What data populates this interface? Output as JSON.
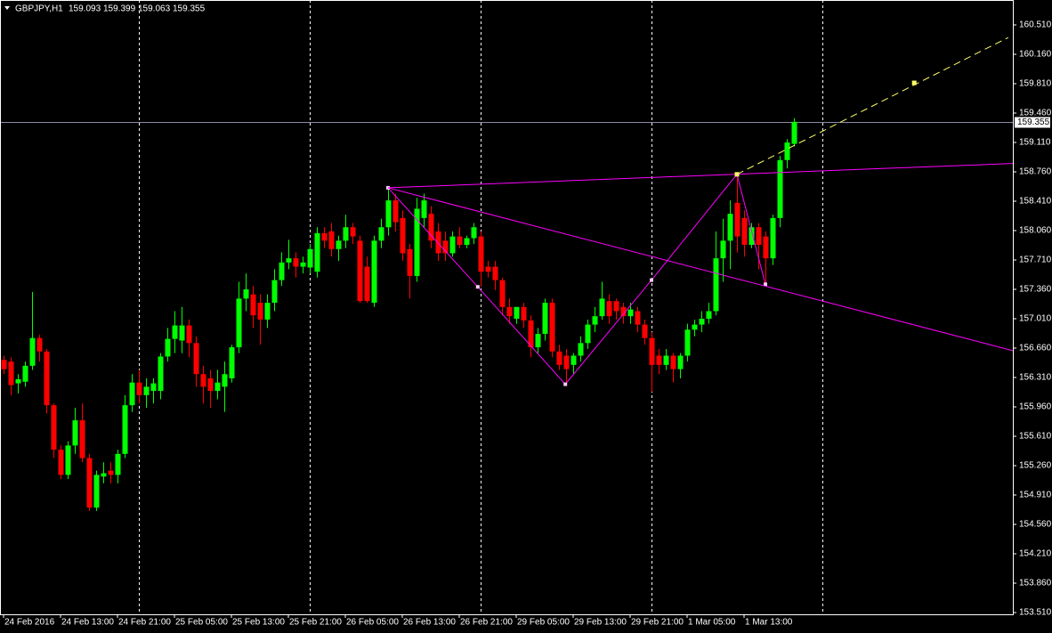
{
  "chart_data": {
    "type": "candlestick",
    "symbol": "GBPJPY,H1",
    "up_color": "#00ff00",
    "down_color": "#ff0000",
    "xlim": [
      -0.5,
      141.75
    ],
    "ylim": [
      153.489,
      160.807
    ],
    "xticks": [
      {
        "value": 0,
        "label": "24 Feb 2016"
      },
      {
        "value": 8,
        "label": "24 Feb 13:00"
      },
      {
        "value": 16,
        "label": "24 Feb 21:00"
      },
      {
        "value": 24,
        "label": "25 Feb 05:00"
      },
      {
        "value": 32,
        "label": "25 Feb 13:00"
      },
      {
        "value": 40,
        "label": "25 Feb 21:00"
      },
      {
        "value": 48,
        "label": "26 Feb 05:00"
      },
      {
        "value": 56,
        "label": "26 Feb 13:00"
      },
      {
        "value": 64,
        "label": "26 Feb 21:00"
      },
      {
        "value": 72,
        "label": "29 Feb 05:00"
      },
      {
        "value": 80,
        "label": "29 Feb 13:00"
      },
      {
        "value": 88,
        "label": "29 Feb 21:00"
      },
      {
        "value": 96,
        "label": "1 Mar 05:00"
      },
      {
        "value": 104,
        "label": "1 Mar 13:00"
      }
    ],
    "yticks": [
      {
        "value": 160.51,
        "label": "160.510"
      },
      {
        "value": 160.16,
        "label": "160.160"
      },
      {
        "value": 159.81,
        "label": "159.810"
      },
      {
        "value": 159.46,
        "label": "159.460"
      },
      {
        "value": 159.11,
        "label": "159.110"
      },
      {
        "value": 158.76,
        "label": "158.760"
      },
      {
        "value": 158.41,
        "label": "158.410"
      },
      {
        "value": 158.06,
        "label": "158.060"
      },
      {
        "value": 157.71,
        "label": "157.710"
      },
      {
        "value": 157.36,
        "label": "157.360"
      },
      {
        "value": 157.01,
        "label": "157.010"
      },
      {
        "value": 156.66,
        "label": "156.660"
      },
      {
        "value": 156.31,
        "label": "156.310"
      },
      {
        "value": 155.96,
        "label": "155.960"
      },
      {
        "value": 155.61,
        "label": "155.610"
      },
      {
        "value": 155.26,
        "label": "155.260"
      },
      {
        "value": 154.91,
        "label": "154.910"
      },
      {
        "value": 154.56,
        "label": "154.560"
      },
      {
        "value": 154.21,
        "label": "154.210"
      },
      {
        "value": 153.86,
        "label": "153.860"
      },
      {
        "value": 153.51,
        "label": "153.510"
      }
    ],
    "xgrid": [
      19,
      43,
      67,
      91,
      115
    ],
    "open": [
      156.52,
      156.5,
      156.24,
      156.26,
      156.45,
      156.78,
      156.62,
      155.98,
      155.45,
      155.15,
      155.5,
      155.8,
      155.35,
      154.76,
      155.13,
      155.2,
      155.15,
      155.4,
      155.98,
      156.25,
      156.1,
      156.15,
      156.15,
      156.56,
      156.77,
      156.75,
      156.93,
      156.72,
      156.35,
      156.3,
      156.15,
      156.2,
      156.3,
      156.67,
      157.25,
      157.3,
      157.2,
      157,
      157.2,
      157.47,
      157.68,
      157.73,
      157.63,
      157.62,
      157.57,
      158.03,
      158.05,
      157.84,
      157.94,
      158.1,
      157.94,
      157.63,
      157.2,
      157.94,
      158.1,
      158.42,
      158.21,
      157.84,
      157.52,
      158.21,
      158.26,
      158.05,
      157.94,
      157.79,
      157.99,
      157.89,
      157.97,
      157.99,
      157.63,
      157.63,
      157.47,
      157.15,
      157.01,
      157.15,
      156.99,
      156.67,
      156.83,
      157.2,
      156.62,
      156.57,
      156.46,
      156.57,
      156.72,
      156.94,
      157.04,
      157.22,
      157.22,
      157.15,
      157.04,
      157.1,
      156.94,
      156.78,
      156.57,
      156.46,
      156.57,
      156.41,
      156.57,
      156.88,
      156.94,
      157.01,
      157.1,
      157.73,
      157.94,
      158.39,
      158.21,
      157.89,
      158.1,
      157.99,
      157.73,
      158.21,
      158.9,
      159.093
    ],
    "high": [
      156.57,
      156.55,
      156.35,
      156.5,
      157.33,
      156.82,
      156.65,
      156,
      155.5,
      155.55,
      155.95,
      156,
      155.4,
      155.2,
      155.3,
      155.3,
      155.45,
      156.1,
      156.35,
      156.4,
      156.3,
      156.3,
      156.6,
      156.9,
      157.1,
      157.15,
      157,
      156.8,
      156.45,
      156.4,
      156.4,
      156.5,
      156.7,
      157.45,
      157.55,
      157.4,
      157.3,
      157.3,
      157.6,
      157.8,
      157.95,
      157.8,
      157.75,
      157.9,
      158.1,
      158.1,
      158.15,
      158,
      158.25,
      158.15,
      158,
      157.75,
      158,
      158.2,
      158.57,
      158.5,
      158.3,
      157.9,
      158.45,
      158.5,
      158.35,
      158.15,
      158.05,
      158.05,
      158.1,
      158,
      158.15,
      158.05,
      157.7,
      157.7,
      157.5,
      157.25,
      157.15,
      157.2,
      157.05,
      156.9,
      157.25,
      157.25,
      156.7,
      156.65,
      156.6,
      156.8,
      157,
      157.15,
      157.45,
      157.3,
      157.25,
      157.2,
      157.2,
      157.15,
      157,
      156.85,
      156.65,
      156.65,
      156.6,
      156.6,
      156.95,
      157,
      157.1,
      157.2,
      158.05,
      158.2,
      158.42,
      158.73,
      158.3,
      158.15,
      158.15,
      158.05,
      158.25,
      158.95,
      159.15,
      159.399
    ],
    "low": [
      156.35,
      156.1,
      156.12,
      156.2,
      156.4,
      156.5,
      155.88,
      155.35,
      155.1,
      155.1,
      155.4,
      155.3,
      154.72,
      154.72,
      155.05,
      155.05,
      155.05,
      155.35,
      155.9,
      156,
      155.95,
      156,
      156.05,
      156.5,
      156.6,
      156.6,
      156.55,
      156.2,
      156,
      155.95,
      156.05,
      155.9,
      156.25,
      156.6,
      157.1,
      156.9,
      156.7,
      156.9,
      157.1,
      157.4,
      157.6,
      157.5,
      157.55,
      157.55,
      157.5,
      157.85,
      157.75,
      157.7,
      157.85,
      157.9,
      157.2,
      157.2,
      157.15,
      157.85,
      158,
      158.05,
      157.7,
      157.25,
      157.45,
      158.1,
      157.85,
      157.7,
      157.7,
      157.75,
      157.85,
      157.85,
      157.9,
      157.39,
      157.5,
      157.35,
      157.05,
      156.95,
      156.95,
      156.9,
      156.55,
      156.6,
      156.75,
      156.55,
      156.4,
      156.23,
      156.35,
      156.5,
      156.65,
      156.85,
      157,
      156.95,
      157,
      156.95,
      156.95,
      156.85,
      156.7,
      156.14,
      156.35,
      156.4,
      156.25,
      156.3,
      156.5,
      156.8,
      156.85,
      156.95,
      157.05,
      157.45,
      157.6,
      157.8,
      157.75,
      157.85,
      157.6,
      157.42,
      157.65,
      158.1,
      158.8,
      159.063
    ],
    "close": [
      156.41,
      156.22,
      156.29,
      156.45,
      156.78,
      156.62,
      155.98,
      155.45,
      155.15,
      155.5,
      155.8,
      155.35,
      154.76,
      155.15,
      155.17,
      155.15,
      155.4,
      155.98,
      156.25,
      156.1,
      156.2,
      156.24,
      156.56,
      156.77,
      156.93,
      156.93,
      156.72,
      156.35,
      156.2,
      156.15,
      156.25,
      156.35,
      156.67,
      157.25,
      157.36,
      157.05,
      157,
      157.2,
      157.47,
      157.68,
      157.73,
      157.63,
      157.68,
      157.84,
      158.03,
      157.94,
      157.84,
      157.94,
      158.1,
      157.99,
      157.22,
      157.22,
      157.94,
      158.1,
      158.42,
      158.16,
      157.79,
      157.52,
      158.32,
      158.42,
      157.94,
      157.79,
      157.79,
      157.99,
      157.89,
      157.97,
      158.1,
      157.57,
      157.57,
      157.47,
      157.15,
      157.04,
      157.15,
      156.99,
      156.67,
      156.83,
      157.2,
      156.62,
      156.46,
      156.41,
      156.57,
      156.72,
      156.94,
      157.04,
      157.25,
      157.04,
      157.1,
      157.04,
      157.12,
      156.94,
      156.78,
      156.46,
      156.46,
      156.57,
      156.41,
      156.57,
      156.88,
      156.94,
      157.01,
      157.1,
      157.73,
      157.94,
      158.26,
      157.99,
      157.89,
      158.1,
      157.89,
      157.73,
      158.21,
      158.9,
      159.11,
      159.355
    ],
    "price_line_color": "#8c8ca8",
    "zigzag": {
      "color": "#ff00ff",
      "x": [
        54,
        66.6,
        78.9,
        91,
        103,
        107
      ],
      "y": [
        158.57,
        157.39,
        156.23,
        157.47,
        158.73,
        157.42
      ]
    },
    "trendlines": [
      {
        "color": "#ff00ff",
        "x": [
          54,
          141.75
        ],
        "y": [
          158.57,
          158.86
        ]
      },
      {
        "color": "#ff00ff",
        "x": [
          54,
          141.75
        ],
        "y": [
          158.57,
          156.63
        ]
      }
    ],
    "projection": {
      "color": "#ffff66",
      "x": [
        103,
        141.1
      ],
      "y": [
        158.73,
        160.36
      ],
      "point_x": 127.9,
      "point_y": 159.82
    }
  }
}
